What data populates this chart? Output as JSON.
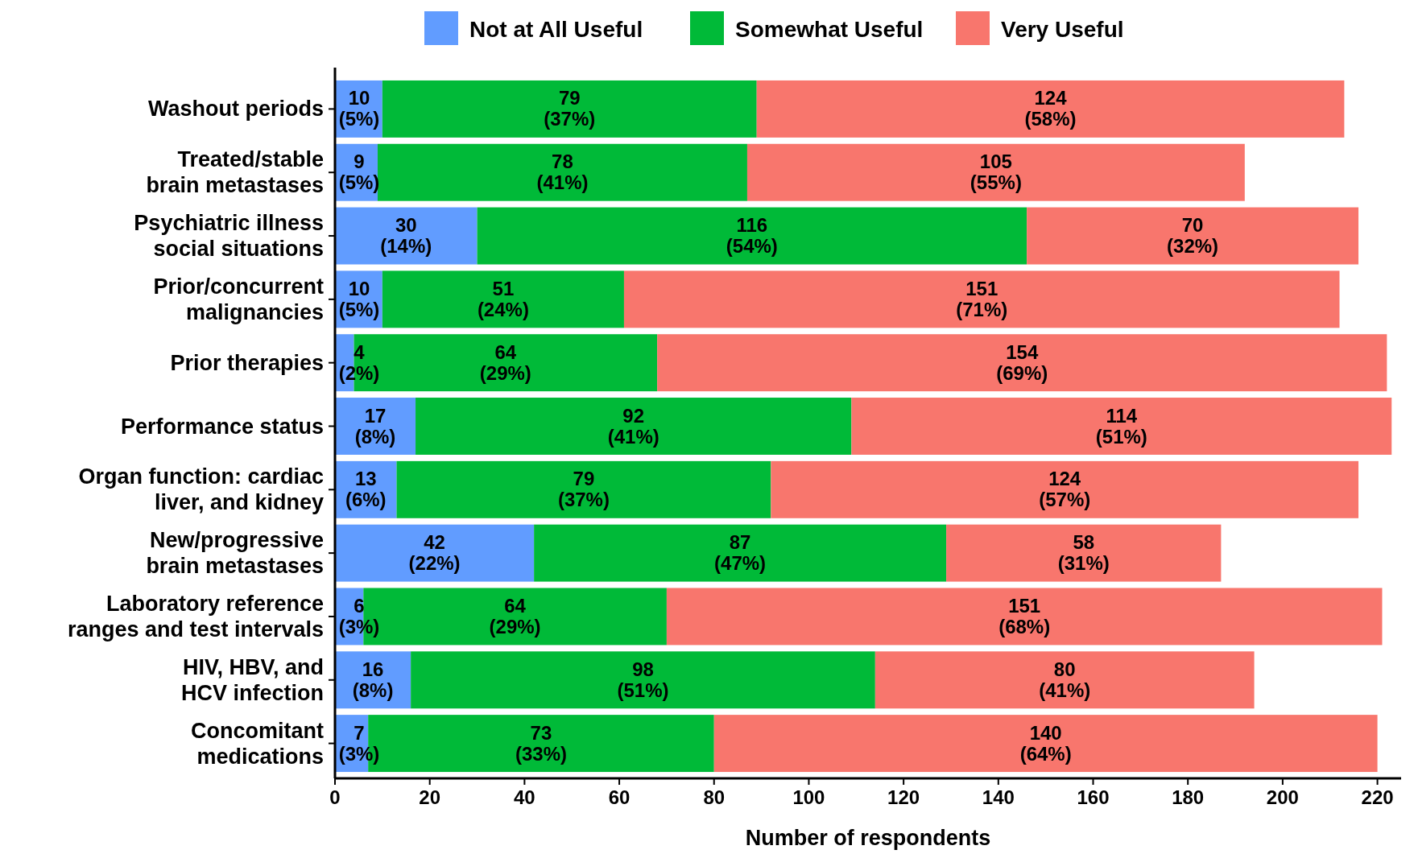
{
  "chart_data": {
    "type": "bar",
    "orientation": "horizontal",
    "stacked": true,
    "xlabel": "Number of respondents",
    "legend": "top",
    "categories": [
      "Washout periods",
      "Treated/stable\nbrain metastases",
      "Psychiatric illness\nsocial situations",
      "Prior/concurrent\nmalignancies",
      "Prior therapies",
      "Performance status",
      "Organ function: cardiac\nliver, and kidney",
      "New/progressive\nbrain metastases",
      "Laboratory reference\nranges and test intervals",
      "HIV, HBV, and\nHCV infection",
      "Concomitant\nmedications"
    ],
    "series": [
      {
        "name": "Not at All Useful",
        "color": "#619cff",
        "values": [
          10,
          9,
          30,
          10,
          4,
          17,
          13,
          42,
          6,
          16,
          7
        ],
        "value_labels": [
          "10\n(5%)",
          "9\n(5%)",
          "30\n(14%)",
          "10\n(5%)",
          "4\n(2%)",
          "17\n(8%)",
          "13\n(6%)",
          "42\n(22%)",
          "6\n(3%)",
          "16\n(8%)",
          "7\n(3%)"
        ]
      },
      {
        "name": "Somewhat Useful",
        "color": "#00ba38",
        "values": [
          79,
          78,
          116,
          51,
          64,
          92,
          79,
          87,
          64,
          98,
          73
        ],
        "value_labels": [
          "79\n(37%)",
          "78\n(41%)",
          "116\n(54%)",
          "51\n(24%)",
          "64\n(29%)",
          "92\n(41%)",
          "79\n(37%)",
          "87\n(47%)",
          "64\n(29%)",
          "98\n(51%)",
          "73\n(33%)"
        ]
      },
      {
        "name": "Very Useful",
        "color": "#f8766d",
        "values": [
          124,
          105,
          70,
          151,
          154,
          114,
          124,
          58,
          151,
          80,
          140
        ],
        "value_labels": [
          "124\n(58%)",
          "105\n(55%)",
          "70\n(32%)",
          "151\n(71%)",
          "154\n(69%)",
          "114\n(51%)",
          "124\n(57%)",
          "58\n(31%)",
          "151\n(68%)",
          "80\n(41%)",
          "140\n(64%)"
        ]
      }
    ],
    "xlim": [
      0,
      225
    ],
    "xticks": [
      0,
      20,
      40,
      60,
      80,
      100,
      120,
      140,
      160,
      180,
      200,
      220
    ],
    "grid": false
  }
}
